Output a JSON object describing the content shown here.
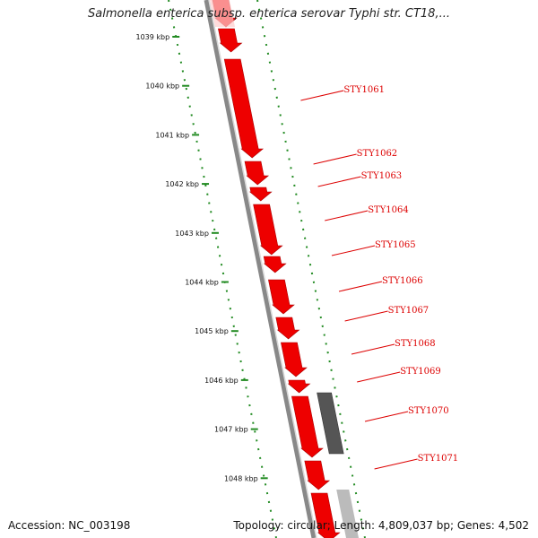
{
  "title": "Salmonella enterica subsp. enterica serovar Typhi str. CT18,...",
  "footer": {
    "accession": "Accession: NC_003198",
    "summary": "Topology: circular; Length: 4,809,037 bp; Genes: 4,502"
  },
  "colors": {
    "gene_forward": "#ee0000",
    "gene_other": "#555555",
    "gene_faded": "#bbbbbb",
    "backbone": "#888888",
    "tick": "#228b22",
    "label": "#dd0000"
  },
  "scale_ticks": [
    {
      "kbp": 1039,
      "label": "1039 kbp"
    },
    {
      "kbp": 1040,
      "label": "1040 kbp"
    },
    {
      "kbp": 1041,
      "label": "1041 kbp"
    },
    {
      "kbp": 1042,
      "label": "1042 kbp"
    },
    {
      "kbp": 1043,
      "label": "1043 kbp"
    },
    {
      "kbp": 1044,
      "label": "1044 kbp"
    },
    {
      "kbp": 1045,
      "label": "1045 kbp"
    },
    {
      "kbp": 1046,
      "label": "1046 kbp"
    },
    {
      "kbp": 1047,
      "label": "1047 kbp"
    },
    {
      "kbp": 1048,
      "label": "1048 kbp"
    }
  ],
  "genes": [
    {
      "name": "STY1061"
    },
    {
      "name": "STY1062"
    },
    {
      "name": "STY1063"
    },
    {
      "name": "STY1064"
    },
    {
      "name": "STY1065"
    },
    {
      "name": "STY1066"
    },
    {
      "name": "STY1067"
    },
    {
      "name": "STY1068"
    },
    {
      "name": "STY1069"
    },
    {
      "name": "STY1070"
    },
    {
      "name": "STY1071"
    }
  ]
}
